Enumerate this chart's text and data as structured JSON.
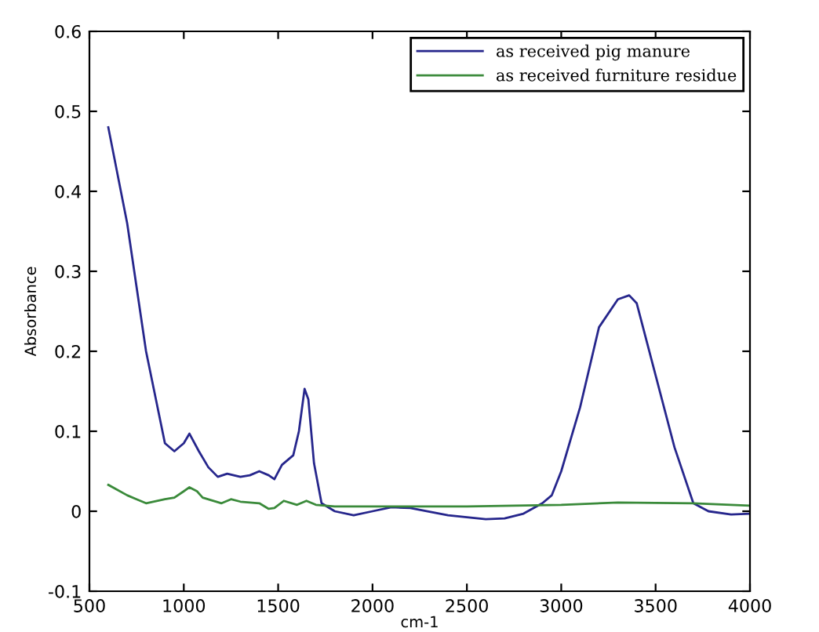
{
  "chart_data": {
    "type": "line",
    "xlabel": "cm-1",
    "ylabel": "Absorbance",
    "xlim": [
      500,
      4000
    ],
    "xticks": [
      500,
      1000,
      1500,
      2000,
      2500,
      3000,
      3500,
      4000
    ],
    "ylim": [
      -0.1,
      0.6
    ],
    "yticks": [
      -0.1,
      0,
      0.1,
      0.2,
      0.3,
      0.4,
      0.5,
      0.6
    ],
    "grid": false,
    "legend": "top right",
    "marker": "none",
    "line_style": "solid",
    "series": [
      {
        "name": "as received pig manure",
        "color": "#26268c",
        "x": [
          600,
          700,
          800,
          900,
          950,
          1000,
          1030,
          1080,
          1130,
          1180,
          1230,
          1300,
          1350,
          1400,
          1450,
          1480,
          1520,
          1580,
          1610,
          1640,
          1660,
          1690,
          1730,
          1800,
          1900,
          2000,
          2100,
          2200,
          2400,
          2600,
          2700,
          2800,
          2900,
          2950,
          3000,
          3100,
          3200,
          3300,
          3360,
          3400,
          3500,
          3600,
          3700,
          3780,
          3900,
          4000
        ],
        "values": [
          0.48,
          0.36,
          0.2,
          0.085,
          0.075,
          0.085,
          0.097,
          0.075,
          0.055,
          0.043,
          0.047,
          0.043,
          0.045,
          0.05,
          0.045,
          0.04,
          0.058,
          0.07,
          0.1,
          0.153,
          0.14,
          0.06,
          0.01,
          0.0,
          -0.005,
          0.0,
          0.005,
          0.004,
          -0.005,
          -0.01,
          -0.009,
          -0.003,
          0.01,
          0.02,
          0.05,
          0.13,
          0.23,
          0.265,
          0.27,
          0.26,
          0.17,
          0.08,
          0.01,
          0.0,
          -0.004,
          -0.003
        ]
      },
      {
        "name": "as received furniture residue",
        "color": "#3a8a3a",
        "x": [
          600,
          700,
          750,
          800,
          900,
          950,
          1000,
          1030,
          1070,
          1100,
          1200,
          1250,
          1300,
          1400,
          1450,
          1480,
          1530,
          1600,
          1650,
          1700,
          1800,
          2500,
          3000,
          3300,
          3700,
          4000
        ],
        "values": [
          0.033,
          0.02,
          0.015,
          0.01,
          0.015,
          0.017,
          0.025,
          0.03,
          0.025,
          0.017,
          0.01,
          0.015,
          0.012,
          0.01,
          0.003,
          0.004,
          0.013,
          0.008,
          0.013,
          0.008,
          0.006,
          0.006,
          0.008,
          0.011,
          0.01,
          0.007
        ]
      }
    ]
  }
}
